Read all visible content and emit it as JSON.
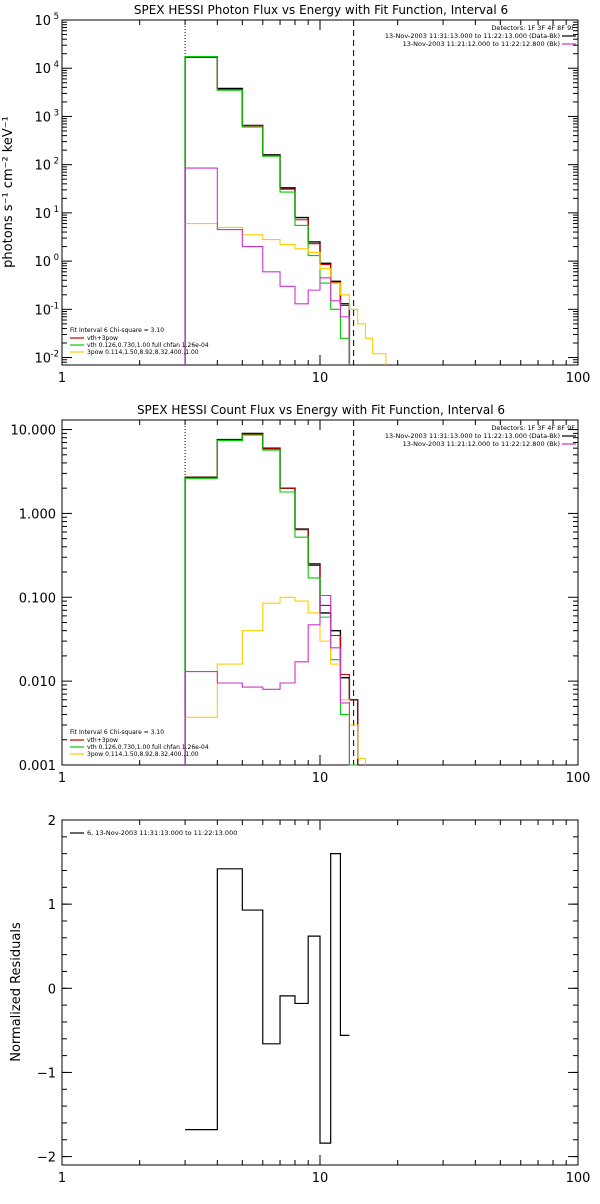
{
  "chart_data": [
    {
      "type": "line",
      "title": "SPEX HESSI Photon Flux vs Energy with Fit Function, Interval 6",
      "ylabel": "photons s⁻¹ cm⁻² keV⁻¹",
      "xlabel": "",
      "xscale": "log",
      "yscale": "log",
      "xlim": [
        1,
        100
      ],
      "ylim": [
        0.007,
        100000
      ],
      "xticks": [
        1,
        10,
        100
      ],
      "xtick_labels": [
        "1",
        "10",
        "100"
      ],
      "yticks": [
        0.01,
        0.1,
        1,
        10,
        100,
        1000,
        10000,
        100000
      ],
      "ytick_labels": [
        [
          "10",
          "-2"
        ],
        [
          "10",
          "-1"
        ],
        [
          "10",
          "0"
        ],
        [
          "10",
          "1"
        ],
        [
          "10",
          "2"
        ],
        [
          "10",
          "3"
        ],
        [
          "10",
          "4"
        ],
        [
          "10",
          "5"
        ]
      ],
      "grid": false,
      "vlines": [
        {
          "x": 3.0,
          "style": "dotted"
        },
        {
          "x": 13.5,
          "style": "dashed"
        }
      ],
      "legend_top": {
        "position": "top-right",
        "lines": [
          {
            "text": "Detectors: 1F 3F 4F 8F 9F",
            "color": ""
          },
          {
            "text": "13-Nov-2003 11:31:13.000 to 11:22:13.000 (Data-Bk)",
            "color": "#000000"
          },
          {
            "text": "13-Nov-2003 11:21:12.000 to 11:22:12.800 (Bk)",
            "color": "#cc33cc"
          }
        ]
      },
      "legend_bottom": {
        "position": "bottom-left",
        "header": "Fit Interval 6    Chi-square = 3.10",
        "entries": [
          {
            "text": "vth+3pow",
            "color": "#cc0000"
          },
          {
            "text": "vth 0.126,0.730,1.00  full chfan 1.26e-04",
            "color": "#00cc00"
          },
          {
            "text": "3pow 0.114,1.50,8.92,8.32,400.,1.00",
            "color": "#ffcc00"
          }
        ]
      },
      "edges": [
        3.0,
        4.0,
        5.0,
        6.0,
        7.0,
        8.0,
        9.0,
        10.0,
        11.0,
        12.0,
        13.0,
        14.0,
        15.0,
        16.0,
        18.0
      ],
      "series": [
        {
          "color": "#000000",
          "width": 1.4,
          "values": [
            17000,
            3800,
            650,
            160,
            33,
            8.0,
            2.5,
            0.9,
            0.38,
            0.13,
            null,
            null,
            null,
            null
          ]
        },
        {
          "color": "#cc0000",
          "width": 1.1,
          "values": [
            17500,
            3600,
            640,
            155,
            31,
            7.2,
            2.3,
            0.85,
            0.36,
            0.12,
            null,
            null,
            null,
            null
          ]
        },
        {
          "color": "#00cc00",
          "width": 1.1,
          "values": [
            17500,
            3500,
            600,
            150,
            27,
            5.5,
            1.3,
            0.35,
            0.1,
            0.025,
            null,
            null,
            null,
            null
          ]
        },
        {
          "color": "#ffcc00",
          "width": 1.1,
          "values": [
            6.0,
            5.0,
            3.5,
            2.8,
            2.2,
            1.8,
            1.5,
            0.7,
            0.35,
            0.2,
            0.1,
            0.05,
            0.025,
            0.012
          ]
        },
        {
          "color": "#cc33cc",
          "width": 1.1,
          "values": [
            85,
            4.5,
            2.0,
            0.6,
            0.3,
            0.13,
            0.25,
            0.45,
            0.15,
            0.07,
            null,
            null,
            null,
            null
          ]
        }
      ]
    },
    {
      "type": "line",
      "title": "SPEX HESSI Count Flux vs Energy with Fit Function, Interval 6",
      "ylabel": "",
      "xlabel": "",
      "xscale": "log",
      "yscale": "log",
      "xlim": [
        1,
        100
      ],
      "ylim": [
        0.001,
        13
      ],
      "xticks": [
        1,
        10,
        100
      ],
      "xtick_labels": [
        "1",
        "10",
        "100"
      ],
      "yticks": [
        0.001,
        0.01,
        0.1,
        1,
        10
      ],
      "ytick_labels": [
        "0.001",
        "0.010",
        "0.100",
        "1.000",
        "10.000"
      ],
      "grid": false,
      "vlines": [
        {
          "x": 3.0,
          "style": "dotted"
        },
        {
          "x": 13.5,
          "style": "dashed"
        }
      ],
      "legend_top": {
        "position": "top-right",
        "lines": [
          {
            "text": "Detectors: 1F 3F 4F 8F 9F",
            "color": ""
          },
          {
            "text": "13-Nov-2003 11:31:13.000 to 11:22:13.000 (Data-Bk)",
            "color": "#000000"
          },
          {
            "text": "13-Nov-2003 11:21:12.000 to 11:22:12.800 (Bk)",
            "color": "#cc33cc"
          }
        ]
      },
      "legend_bottom": {
        "position": "bottom-left",
        "header": "Fit Interval 6    Chi-square = 3.10",
        "entries": [
          {
            "text": "vth+3pow",
            "color": "#cc0000"
          },
          {
            "text": "vth 0.126,0.730,1.00  full chfan 1.26e-04",
            "color": "#00cc00"
          },
          {
            "text": "3pow 0.114,1.50,8.92,8.32,400.,1.00",
            "color": "#ffcc00"
          }
        ]
      },
      "edges": [
        3.0,
        4.0,
        5.0,
        6.0,
        7.0,
        8.0,
        9.0,
        10.0,
        11.0,
        12.0,
        13.0,
        14.0,
        15.0,
        16.0,
        18.0
      ],
      "series": [
        {
          "color": "#000000",
          "width": 1.4,
          "values": [
            2.7,
            7.6,
            9.0,
            6.0,
            2.0,
            0.65,
            0.25,
            0.065,
            0.04,
            0.011,
            0.006,
            null,
            null,
            null
          ]
        },
        {
          "color": "#cc0000",
          "width": 1.1,
          "values": [
            2.7,
            7.5,
            8.8,
            5.9,
            2.0,
            0.64,
            0.24,
            0.08,
            0.035,
            0.012,
            0.006,
            null,
            null,
            null
          ]
        },
        {
          "color": "#00cc00",
          "width": 1.1,
          "values": [
            2.6,
            7.4,
            8.6,
            5.7,
            1.8,
            0.52,
            0.17,
            0.058,
            0.018,
            0.004,
            0.0009,
            null,
            null,
            null
          ]
        },
        {
          "color": "#ffcc00",
          "width": 1.1,
          "values": [
            0.0037,
            0.016,
            0.04,
            0.085,
            0.1,
            0.09,
            0.065,
            0.03,
            0.016,
            0.006,
            0.003,
            0.0012,
            null,
            null
          ]
        },
        {
          "color": "#cc33cc",
          "width": 1.1,
          "values": [
            0.013,
            0.0095,
            0.0085,
            0.008,
            0.0095,
            0.017,
            0.047,
            0.105,
            0.025,
            0.0055,
            null,
            null,
            null,
            null
          ]
        }
      ]
    },
    {
      "type": "line",
      "title": "",
      "ylabel": "Normalized Residuals",
      "xlabel": "",
      "xscale": "log",
      "yscale": "linear",
      "xlim": [
        1,
        100
      ],
      "ylim": [
        -2.1,
        2
      ],
      "xticks": [
        1,
        10,
        100
      ],
      "xtick_labels": [
        "1",
        "10",
        "100"
      ],
      "yticks": [
        -2,
        -1,
        0,
        1,
        2
      ],
      "ytick_labels": [
        "−2",
        "−1",
        "0",
        "1",
        "2"
      ],
      "grid": false,
      "vlines": [],
      "legend_top": {
        "position": "top-left",
        "lines": [
          {
            "text": "6, 13-Nov-2003 11:31:13.000 to 11:22:13.000",
            "color": "#000000"
          }
        ]
      },
      "legend_bottom": null,
      "edges": [
        3.0,
        4.0,
        5.0,
        6.0,
        7.0,
        8.0,
        9.0,
        10.0,
        11.0,
        12.0,
        13.0
      ],
      "series": [
        {
          "color": "#000000",
          "width": 1.2,
          "values": [
            -1.68,
            1.42,
            0.93,
            -0.66,
            -0.09,
            -0.18,
            0.62,
            -1.84,
            1.6,
            -0.56
          ]
        }
      ]
    }
  ]
}
